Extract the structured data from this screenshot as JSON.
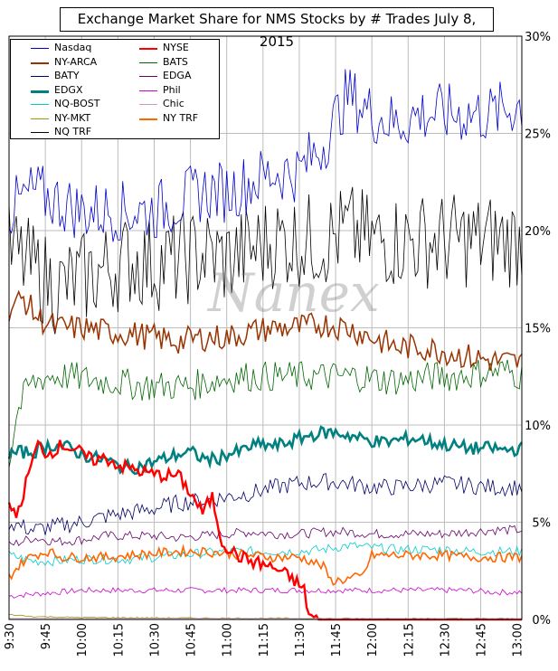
{
  "chart_data": {
    "type": "line",
    "title": "Exchange Market Share for NMS Stocks by # Trades July 8, 2015",
    "watermark": "Nanex",
    "x_ticks": [
      "9:30",
      "9:45",
      "10:00",
      "10:15",
      "10:30",
      "10:45",
      "11:00",
      "11:15",
      "11:30",
      "11:45",
      "12:00",
      "12:15",
      "12:30",
      "12:45",
      "13:00"
    ],
    "y_ticks": [
      "0%",
      "5%",
      "10%",
      "15%",
      "20%",
      "25%",
      "30%"
    ],
    "ylim": [
      0,
      30
    ],
    "xlim_minutes": [
      0,
      212
    ],
    "grid": true,
    "legend_position": "top-left",
    "series": [
      {
        "name": "Nasdaq",
        "color": "#0000cc",
        "width": 0.8,
        "points": [
          [
            0,
            21
          ],
          [
            10,
            22
          ],
          [
            20,
            21.5
          ],
          [
            30,
            21
          ],
          [
            40,
            21
          ],
          [
            50,
            21
          ],
          [
            60,
            21
          ],
          [
            70,
            21.5
          ],
          [
            80,
            22
          ],
          [
            90,
            22
          ],
          [
            100,
            22.5
          ],
          [
            110,
            23
          ],
          [
            120,
            23
          ],
          [
            130,
            24.5
          ],
          [
            140,
            27
          ],
          [
            150,
            26
          ],
          [
            160,
            25.5
          ],
          [
            170,
            26
          ],
          [
            180,
            26
          ],
          [
            190,
            26
          ],
          [
            200,
            26
          ],
          [
            212,
            26.5
          ]
        ]
      },
      {
        "name": "NYSE",
        "color": "#ff0000",
        "width": 2.4,
        "points": [
          [
            0,
            5.8
          ],
          [
            4,
            5.5
          ],
          [
            8,
            7.5
          ],
          [
            12,
            9
          ],
          [
            16,
            8.5
          ],
          [
            22,
            9
          ],
          [
            28,
            8.7
          ],
          [
            34,
            8.2
          ],
          [
            40,
            8.3
          ],
          [
            46,
            7.9
          ],
          [
            52,
            7.7
          ],
          [
            58,
            7.5
          ],
          [
            64,
            7.4
          ],
          [
            70,
            7.4
          ],
          [
            75,
            6.5
          ],
          [
            80,
            5.5
          ],
          [
            84,
            6.3
          ],
          [
            88,
            4
          ],
          [
            94,
            3.3
          ],
          [
            100,
            3
          ],
          [
            106,
            2.8
          ],
          [
            112,
            2.5
          ],
          [
            118,
            2
          ],
          [
            122,
            1.5
          ],
          [
            124,
            0.2
          ],
          [
            128,
            0
          ],
          [
            212,
            0
          ]
        ]
      },
      {
        "name": "NY-ARCA",
        "color": "#993300",
        "width": 1.5,
        "points": [
          [
            0,
            16
          ],
          [
            6,
            16.5
          ],
          [
            12,
            15.5
          ],
          [
            20,
            15
          ],
          [
            30,
            15
          ],
          [
            40,
            14.8
          ],
          [
            50,
            14.7
          ],
          [
            60,
            14.5
          ],
          [
            70,
            14.3
          ],
          [
            80,
            14.5
          ],
          [
            90,
            14.5
          ],
          [
            100,
            14.8
          ],
          [
            110,
            15
          ],
          [
            120,
            15
          ],
          [
            130,
            15.2
          ],
          [
            140,
            15
          ],
          [
            150,
            14.5
          ],
          [
            160,
            14
          ],
          [
            170,
            14
          ],
          [
            180,
            13.8
          ],
          [
            190,
            13.5
          ],
          [
            200,
            13.3
          ],
          [
            212,
            13.2
          ]
        ]
      },
      {
        "name": "BATS",
        "color": "#006600",
        "width": 0.8,
        "points": [
          [
            0,
            8
          ],
          [
            3,
            10.5
          ],
          [
            8,
            12
          ],
          [
            15,
            12.5
          ],
          [
            25,
            12.5
          ],
          [
            35,
            12.3
          ],
          [
            45,
            12.2
          ],
          [
            55,
            12
          ],
          [
            65,
            12
          ],
          [
            75,
            12
          ],
          [
            85,
            12.3
          ],
          [
            95,
            12.5
          ],
          [
            105,
            12.5
          ],
          [
            115,
            12.5
          ],
          [
            125,
            12.5
          ],
          [
            135,
            12.5
          ],
          [
            145,
            12.5
          ],
          [
            155,
            12.3
          ],
          [
            165,
            12.3
          ],
          [
            175,
            12.5
          ],
          [
            185,
            12.5
          ],
          [
            195,
            12.7
          ],
          [
            205,
            12.8
          ],
          [
            212,
            12.5
          ]
        ]
      },
      {
        "name": "BATY",
        "color": "#000066",
        "width": 0.8,
        "points": [
          [
            0,
            5
          ],
          [
            10,
            4.6
          ],
          [
            20,
            4.8
          ],
          [
            30,
            5
          ],
          [
            40,
            5.3
          ],
          [
            50,
            5.5
          ],
          [
            60,
            5.7
          ],
          [
            70,
            6
          ],
          [
            80,
            6.1
          ],
          [
            90,
            6.3
          ],
          [
            100,
            6.5
          ],
          [
            110,
            6.8
          ],
          [
            120,
            7
          ],
          [
            130,
            7.1
          ],
          [
            140,
            7
          ],
          [
            150,
            6.8
          ],
          [
            160,
            6.8
          ],
          [
            170,
            6.9
          ],
          [
            180,
            7
          ],
          [
            190,
            6.9
          ],
          [
            200,
            6.8
          ],
          [
            212,
            6.8
          ]
        ]
      },
      {
        "name": "EDGA",
        "color": "#660066",
        "width": 0.8,
        "points": [
          [
            0,
            3.8
          ],
          [
            10,
            4.2
          ],
          [
            20,
            4
          ],
          [
            30,
            4.1
          ],
          [
            40,
            4.3
          ],
          [
            50,
            4.3
          ],
          [
            60,
            4.3
          ],
          [
            70,
            4.2
          ],
          [
            80,
            4.3
          ],
          [
            90,
            4.4
          ],
          [
            100,
            4.5
          ],
          [
            110,
            4.4
          ],
          [
            120,
            4.4
          ],
          [
            130,
            4.5
          ],
          [
            140,
            4.5
          ],
          [
            150,
            4.4
          ],
          [
            160,
            4.4
          ],
          [
            170,
            4.4
          ],
          [
            180,
            4.4
          ],
          [
            190,
            4.5
          ],
          [
            200,
            4.6
          ],
          [
            212,
            4.6
          ]
        ]
      },
      {
        "name": "EDGX",
        "color": "#008080",
        "width": 2.6,
        "points": [
          [
            0,
            8.5
          ],
          [
            5,
            8.6
          ],
          [
            10,
            8.6
          ],
          [
            15,
            8.9
          ],
          [
            20,
            9
          ],
          [
            25,
            8.8
          ],
          [
            30,
            8.5
          ],
          [
            35,
            8.3
          ],
          [
            40,
            8.2
          ],
          [
            45,
            7.9
          ],
          [
            50,
            7.8
          ],
          [
            55,
            7.9
          ],
          [
            60,
            8.1
          ],
          [
            65,
            8.3
          ],
          [
            70,
            8.5
          ],
          [
            75,
            8.6
          ],
          [
            80,
            8.3
          ],
          [
            85,
            8.2
          ],
          [
            90,
            8.5
          ],
          [
            95,
            8.6
          ],
          [
            100,
            8.9
          ],
          [
            105,
            9
          ],
          [
            110,
            8.9
          ],
          [
            115,
            9.1
          ],
          [
            120,
            9.3
          ],
          [
            125,
            9.5
          ],
          [
            130,
            9.6
          ],
          [
            135,
            9.6
          ],
          [
            140,
            9.5
          ],
          [
            145,
            9.3
          ],
          [
            150,
            9.2
          ],
          [
            155,
            9.1
          ],
          [
            160,
            9.2
          ],
          [
            165,
            9.3
          ],
          [
            170,
            9.3
          ],
          [
            175,
            9.1
          ],
          [
            180,
            9
          ],
          [
            185,
            8.9
          ],
          [
            190,
            8.8
          ],
          [
            195,
            8.8
          ],
          [
            200,
            8.8
          ],
          [
            205,
            8.7
          ],
          [
            212,
            8.8
          ]
        ]
      },
      {
        "name": "Phil",
        "color": "#cc00cc",
        "width": 0.8,
        "points": [
          [
            0,
            1.2
          ],
          [
            10,
            1.3
          ],
          [
            20,
            1.4
          ],
          [
            30,
            1.5
          ],
          [
            40,
            1.5
          ],
          [
            50,
            1.5
          ],
          [
            60,
            1.5
          ],
          [
            70,
            1.5
          ],
          [
            80,
            1.5
          ],
          [
            90,
            1.5
          ],
          [
            100,
            1.5
          ],
          [
            110,
            1.5
          ],
          [
            120,
            1.5
          ],
          [
            130,
            1.5
          ],
          [
            140,
            1.5
          ],
          [
            150,
            1.5
          ],
          [
            160,
            1.5
          ],
          [
            170,
            1.5
          ],
          [
            180,
            1.5
          ],
          [
            190,
            1.5
          ],
          [
            200,
            1.4
          ],
          [
            212,
            1.4
          ]
        ]
      },
      {
        "name": "NQ-BOST",
        "color": "#00cccc",
        "width": 0.8,
        "points": [
          [
            0,
            3.3
          ],
          [
            10,
            3
          ],
          [
            20,
            3
          ],
          [
            30,
            3.1
          ],
          [
            40,
            3.1
          ],
          [
            50,
            3.1
          ],
          [
            60,
            3.2
          ],
          [
            70,
            3.3
          ],
          [
            80,
            3.4
          ],
          [
            90,
            3.5
          ],
          [
            100,
            3.5
          ],
          [
            110,
            3.5
          ],
          [
            120,
            3.5
          ],
          [
            130,
            3.6
          ],
          [
            140,
            3.8
          ],
          [
            150,
            3.7
          ],
          [
            160,
            3.6
          ],
          [
            170,
            3.6
          ],
          [
            180,
            3.6
          ],
          [
            190,
            3.5
          ],
          [
            200,
            3.5
          ],
          [
            212,
            3.5
          ]
        ]
      },
      {
        "name": "Chic",
        "color": "#cc99cc",
        "width": 0.8,
        "points": [
          [
            0,
            0.05
          ],
          [
            212,
            0.05
          ]
        ]
      },
      {
        "name": "NY-MKT",
        "color": "#999900",
        "width": 0.8,
        "points": [
          [
            0,
            0.25
          ],
          [
            10,
            0.15
          ],
          [
            30,
            0.1
          ],
          [
            60,
            0.08
          ],
          [
            100,
            0.06
          ],
          [
            150,
            0.05
          ],
          [
            212,
            0.05
          ]
        ]
      },
      {
        "name": "NY TRF",
        "color": "#ff6600",
        "width": 1.6,
        "points": [
          [
            0,
            2.2
          ],
          [
            6,
            3
          ],
          [
            10,
            3.3
          ],
          [
            16,
            3.5
          ],
          [
            22,
            3.2
          ],
          [
            30,
            3.2
          ],
          [
            40,
            3.2
          ],
          [
            50,
            3.3
          ],
          [
            60,
            3.4
          ],
          [
            70,
            3.5
          ],
          [
            80,
            3.5
          ],
          [
            90,
            3.4
          ],
          [
            100,
            3.3
          ],
          [
            110,
            3.2
          ],
          [
            120,
            3.2
          ],
          [
            125,
            3
          ],
          [
            130,
            2.7
          ],
          [
            133,
            2
          ],
          [
            136,
            2
          ],
          [
            141,
            2.1
          ],
          [
            146,
            2.2
          ],
          [
            150,
            3.3
          ],
          [
            160,
            3.3
          ],
          [
            170,
            3.3
          ],
          [
            180,
            3.3
          ],
          [
            190,
            3.2
          ],
          [
            200,
            3.2
          ],
          [
            212,
            3.2
          ]
        ]
      },
      {
        "name": "NQ TRF",
        "color": "#000000",
        "width": 0.8,
        "points": [
          [
            0,
            19
          ],
          [
            10,
            18
          ],
          [
            20,
            17
          ],
          [
            30,
            17.5
          ],
          [
            40,
            18
          ],
          [
            50,
            18.5
          ],
          [
            60,
            18.3
          ],
          [
            70,
            18.5
          ],
          [
            80,
            18.8
          ],
          [
            90,
            18.5
          ],
          [
            100,
            19
          ],
          [
            110,
            19.5
          ],
          [
            120,
            19.5
          ],
          [
            130,
            19.5
          ],
          [
            140,
            20
          ],
          [
            150,
            19.5
          ],
          [
            160,
            19.5
          ],
          [
            170,
            19.5
          ],
          [
            180,
            19.5
          ],
          [
            190,
            19.5
          ],
          [
            200,
            19.5
          ],
          [
            212,
            19.5
          ]
        ]
      }
    ]
  }
}
